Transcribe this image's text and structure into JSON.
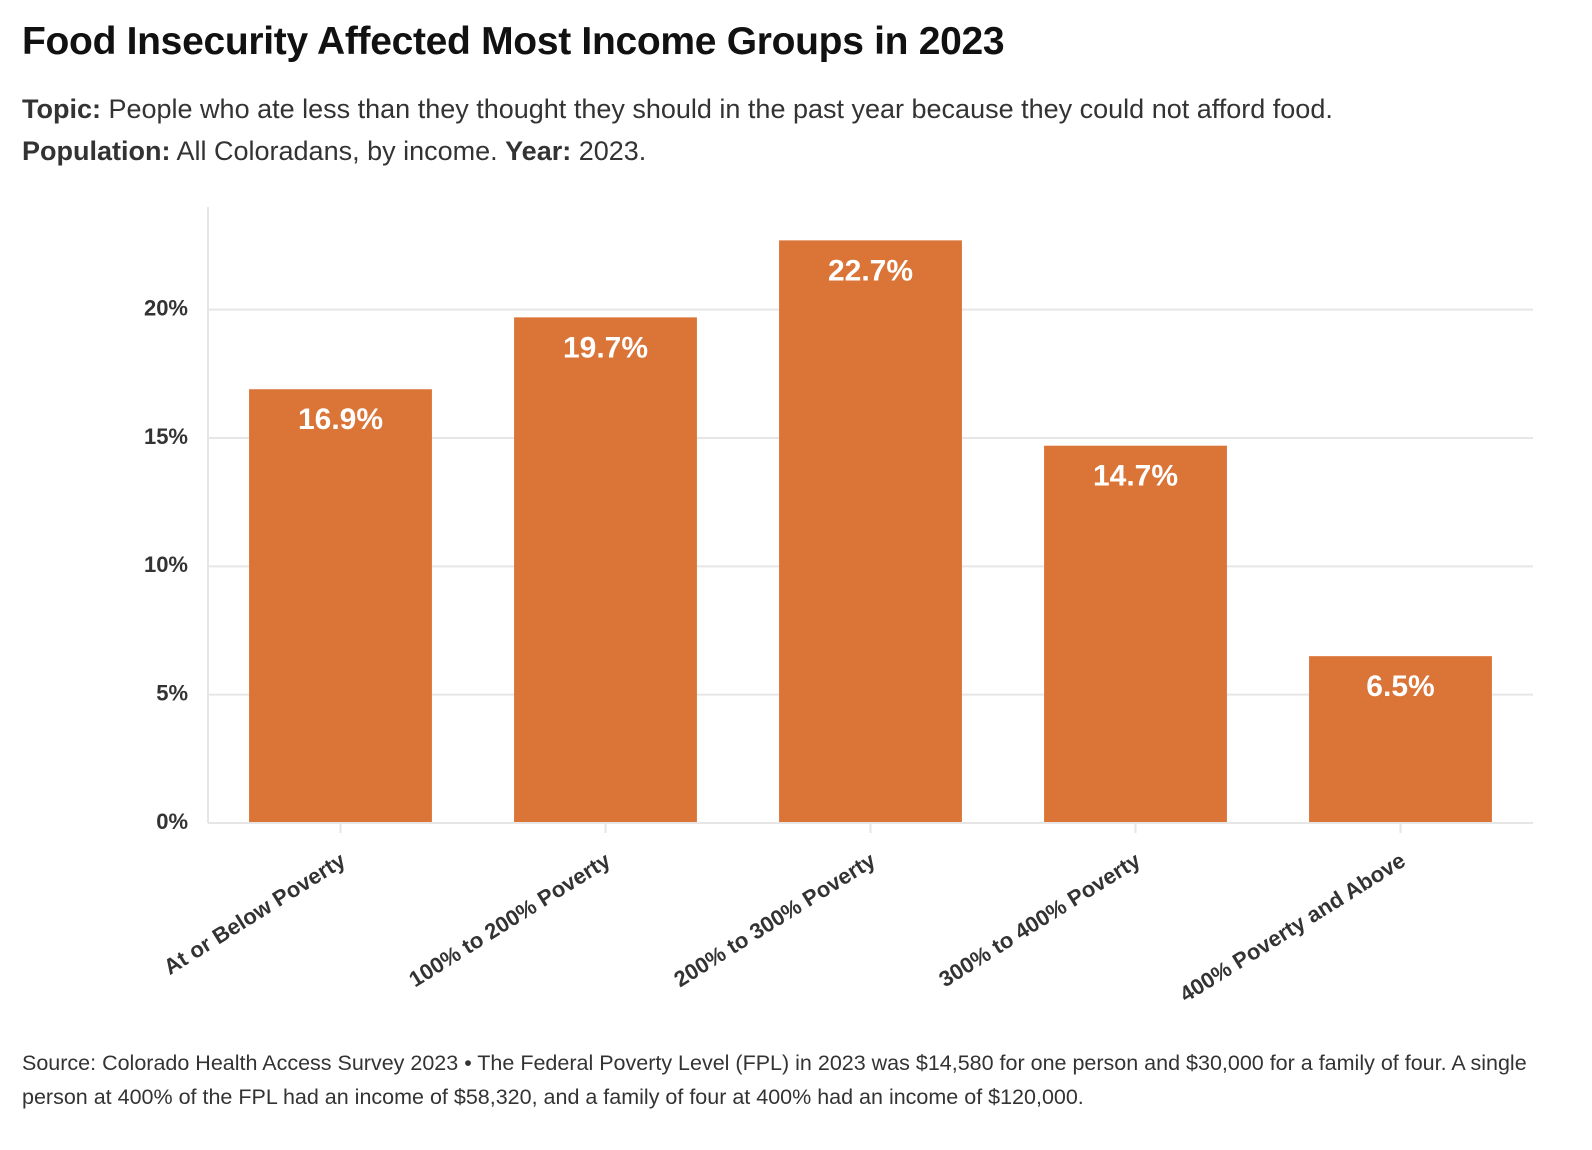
{
  "title": "Food Insecurity Affected Most Income Groups in 2023",
  "subtitle": {
    "topic_label": "Topic:",
    "topic_text": " People who ate less than they thought they should in the past year because they could not afford food.",
    "population_label": "Population:",
    "population_text": " All Coloradans, by income. ",
    "year_label": "Year:",
    "year_text": " 2023."
  },
  "source": "Source: Colorado Health Access Survey 2023 • The Federal Poverty Level (FPL) in 2023 was $14,580 for one person and $30,000 for a family of four. A single person at 400% of the FPL had an income of $58,320, and a family of four at 400% had an income of $120,000.",
  "colors": {
    "bar": "#db7437",
    "grid": "#e6e6e6",
    "axis_text": "#333333",
    "bar_label": "#ffffff"
  },
  "chart_data": {
    "type": "bar",
    "categories": [
      "At or Below Poverty",
      "100% to 200% Poverty",
      "200% to 300% Poverty",
      "300% to 400% Poverty",
      "400% Poverty and Above"
    ],
    "values": [
      16.9,
      19.7,
      22.7,
      14.7,
      6.5
    ],
    "data_labels": [
      "16.9%",
      "19.7%",
      "22.7%",
      "14.7%",
      "6.5%"
    ],
    "title": "Food Insecurity Affected Most Income Groups in 2023",
    "xlabel": "",
    "ylabel": "",
    "ylim": [
      0,
      24
    ],
    "yticks": [
      0,
      5,
      10,
      15,
      20
    ],
    "ytick_labels": [
      "0%",
      "5%",
      "10%",
      "15%",
      "20%"
    ],
    "grid": true
  }
}
